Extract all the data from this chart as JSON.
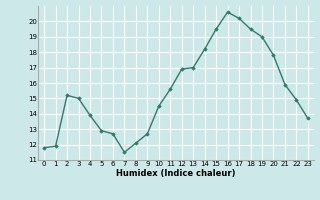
{
  "x": [
    0,
    1,
    2,
    3,
    4,
    5,
    6,
    7,
    8,
    9,
    10,
    11,
    12,
    13,
    14,
    15,
    16,
    17,
    18,
    19,
    20,
    21,
    22,
    23
  ],
  "y": [
    11.8,
    11.9,
    15.2,
    15.0,
    13.9,
    12.9,
    12.7,
    11.5,
    12.1,
    12.7,
    14.5,
    15.6,
    16.9,
    17.0,
    18.2,
    19.5,
    20.6,
    20.2,
    19.5,
    19.0,
    17.8,
    15.9,
    14.9,
    13.7
  ],
  "xlabel": "Humidex (Indice chaleur)",
  "xlim": [
    -0.5,
    23.5
  ],
  "ylim": [
    11,
    21
  ],
  "yticks": [
    11,
    12,
    13,
    14,
    15,
    16,
    17,
    18,
    19,
    20
  ],
  "xticks": [
    0,
    1,
    2,
    3,
    4,
    5,
    6,
    7,
    8,
    9,
    10,
    11,
    12,
    13,
    14,
    15,
    16,
    17,
    18,
    19,
    20,
    21,
    22,
    23
  ],
  "line_color": "#2e7d6b",
  "marker": "D",
  "marker_size": 1.8,
  "bg_color": "#cde8e8",
  "grid_color": "#ffffff",
  "line_width": 1.0,
  "tick_fontsize": 5.0,
  "xlabel_fontsize": 6.0
}
